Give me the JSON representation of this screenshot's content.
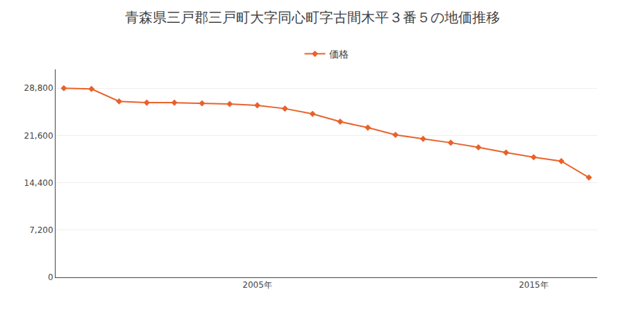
{
  "chart_data": {
    "type": "line",
    "title": "青森県三戸郡三戸町大字同心町字古間木平３番５の地価推移",
    "x": [
      1998,
      1999,
      2000,
      2001,
      2002,
      2003,
      2004,
      2005,
      2006,
      2007,
      2008,
      2009,
      2010,
      2011,
      2012,
      2013,
      2014,
      2015,
      2016,
      2017
    ],
    "series": [
      {
        "name": "価格",
        "color": "#e8622a",
        "marker": "diamond",
        "values": [
          28800,
          28700,
          26800,
          26600,
          26600,
          26500,
          26400,
          26200,
          25700,
          24900,
          23700,
          22800,
          21700,
          21100,
          20500,
          19800,
          19000,
          18300,
          17700,
          15200
        ]
      }
    ],
    "xlim": [
      1997.7,
      2017.3
    ],
    "xticks": [
      {
        "value": 2005,
        "label": "2005年"
      },
      {
        "value": 2015,
        "label": "2015年"
      }
    ],
    "ylim": [
      0,
      31680
    ],
    "yticks": [
      0,
      {
        "value": 7200,
        "label": "7,200"
      },
      {
        "value": 14400,
        "label": "14,400"
      },
      {
        "value": 21600,
        "label": "21,600"
      },
      {
        "value": 28800,
        "label": "28,800"
      }
    ],
    "grid": true,
    "legend": "top"
  }
}
